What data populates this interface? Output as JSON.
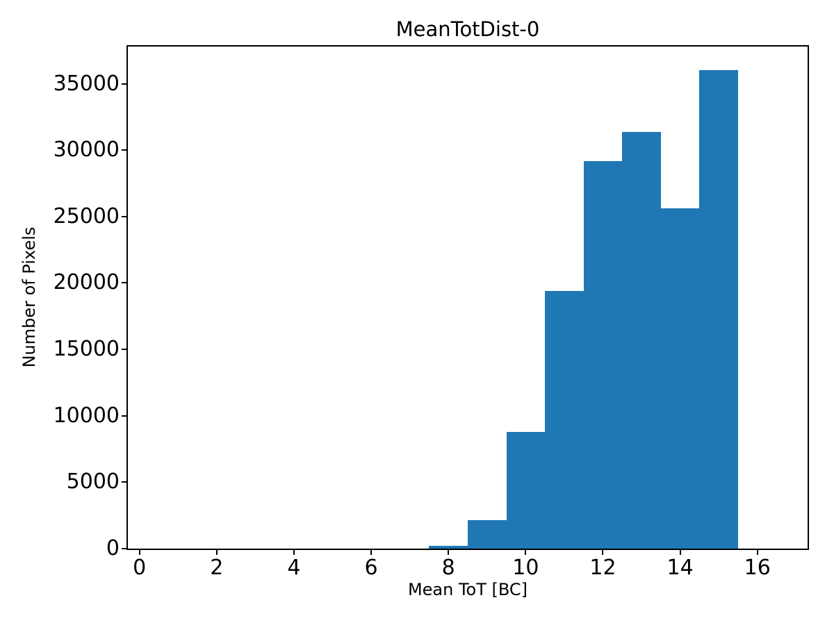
{
  "chart_data": {
    "type": "bar",
    "subtype": "histogram",
    "title": "MeanTotDist-0",
    "xlabel": "Mean ToT [BC]",
    "ylabel": "Number of Pixels",
    "bin_edges": [
      7.5,
      8.5,
      9.5,
      10.5,
      11.5,
      12.5,
      13.5,
      14.5,
      15.5
    ],
    "values": [
      200,
      2150,
      8800,
      19400,
      29150,
      31350,
      25600,
      36000
    ],
    "xlim": [
      -0.3,
      17.3
    ],
    "ylim": [
      0,
      37800
    ],
    "xticks": [
      0,
      2,
      4,
      6,
      8,
      10,
      12,
      14,
      16
    ],
    "yticks": [
      0,
      5000,
      10000,
      15000,
      20000,
      25000,
      30000,
      35000
    ],
    "bar_color": "#1f77b4",
    "axis_color": "#000000",
    "background_color": "#ffffff",
    "grid": false,
    "legend": null
  }
}
